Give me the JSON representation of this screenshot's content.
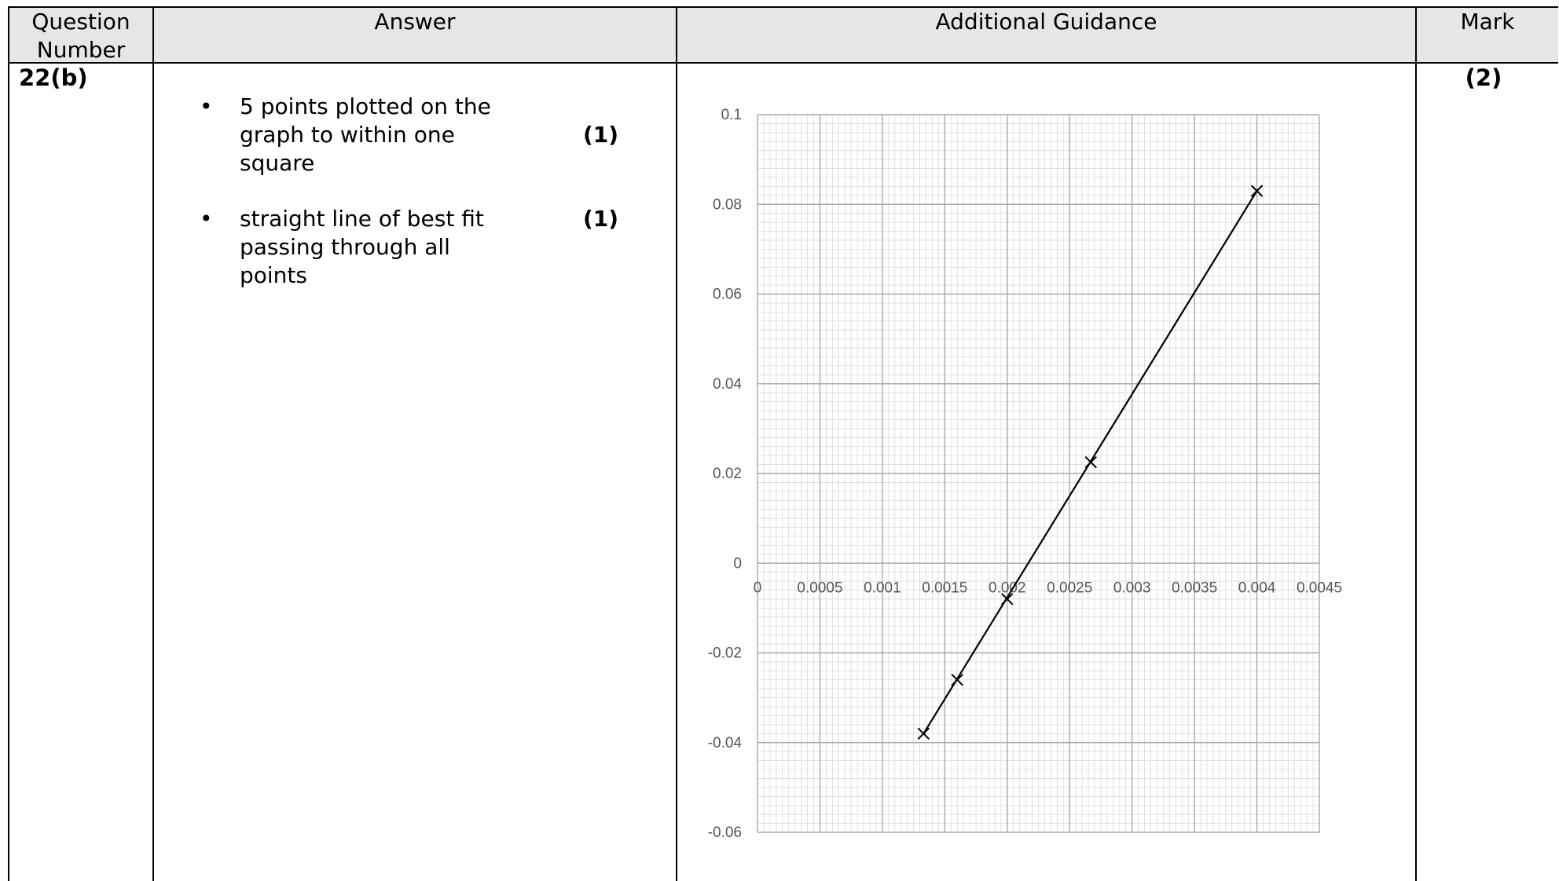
{
  "headers": {
    "question_number": [
      "Question",
      "Number"
    ],
    "answer": "Answer",
    "guidance": "Additional Guidance",
    "mark": "Mark"
  },
  "row": {
    "question_number": "22(b)",
    "mark": "(2)",
    "bullets": [
      {
        "lines": [
          "5 points plotted on the",
          "graph to within one",
          "square"
        ],
        "mark": "(1)"
      },
      {
        "lines": [
          "straight line of best fit",
          "passing through all",
          "points"
        ],
        "mark": "(1)"
      }
    ]
  },
  "chart_data": {
    "type": "scatter",
    "grid": true,
    "xlim": [
      0,
      0.0045
    ],
    "ylim": [
      -0.06,
      0.1
    ],
    "x_ticks": [
      "0",
      "0.0005",
      "0.001",
      "0.0015",
      "0.002",
      "0.0025",
      "0.003",
      "0.0035",
      "0.004",
      "0.0045"
    ],
    "y_ticks": [
      "0.1",
      "0.08",
      "0.06",
      "0.04",
      "0.02",
      "0",
      "-0.02",
      "-0.04",
      "-0.06"
    ],
    "points": [
      {
        "x": 0.00133,
        "y": -0.038
      },
      {
        "x": 0.0016,
        "y": -0.026
      },
      {
        "x": 0.002,
        "y": -0.008
      },
      {
        "x": 0.00267,
        "y": 0.0225
      },
      {
        "x": 0.004,
        "y": 0.083
      }
    ],
    "best_fit_line": {
      "x1": 0.00133,
      "y1": -0.038,
      "x2": 0.004,
      "y2": 0.083
    }
  }
}
